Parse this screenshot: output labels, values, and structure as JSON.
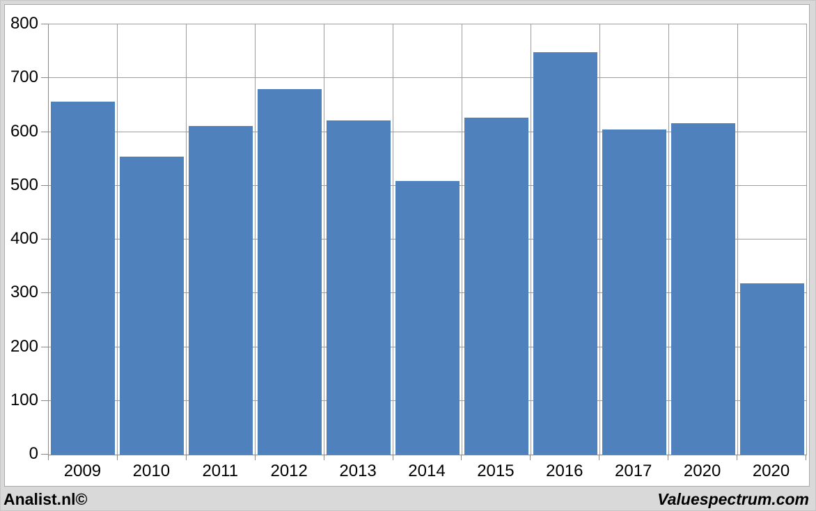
{
  "chart_data": {
    "type": "bar",
    "categories": [
      "2009",
      "2010",
      "2011",
      "2012",
      "2013",
      "2014",
      "2015",
      "2016",
      "2017",
      "2020",
      "2020"
    ],
    "values": [
      656,
      554,
      611,
      680,
      621,
      509,
      627,
      748,
      604,
      616,
      318
    ],
    "title": "",
    "xlabel": "",
    "ylabel": "",
    "ylim": [
      0,
      800
    ],
    "yticks": [
      0,
      100,
      200,
      300,
      400,
      500,
      600,
      700,
      800
    ],
    "grid": true,
    "legend_position": "none",
    "bar_color": "#4f81bd"
  },
  "footer": {
    "left_brand": "Analist.nl©",
    "right_brand": "Valuespectrum.com"
  },
  "colors": {
    "bar": "#4f81bd",
    "gridline": "#9c9c9c",
    "axis": "#868686",
    "frame_background": "#d9d9d9",
    "canvas_background": "#ffffff",
    "text": "#000000"
  }
}
